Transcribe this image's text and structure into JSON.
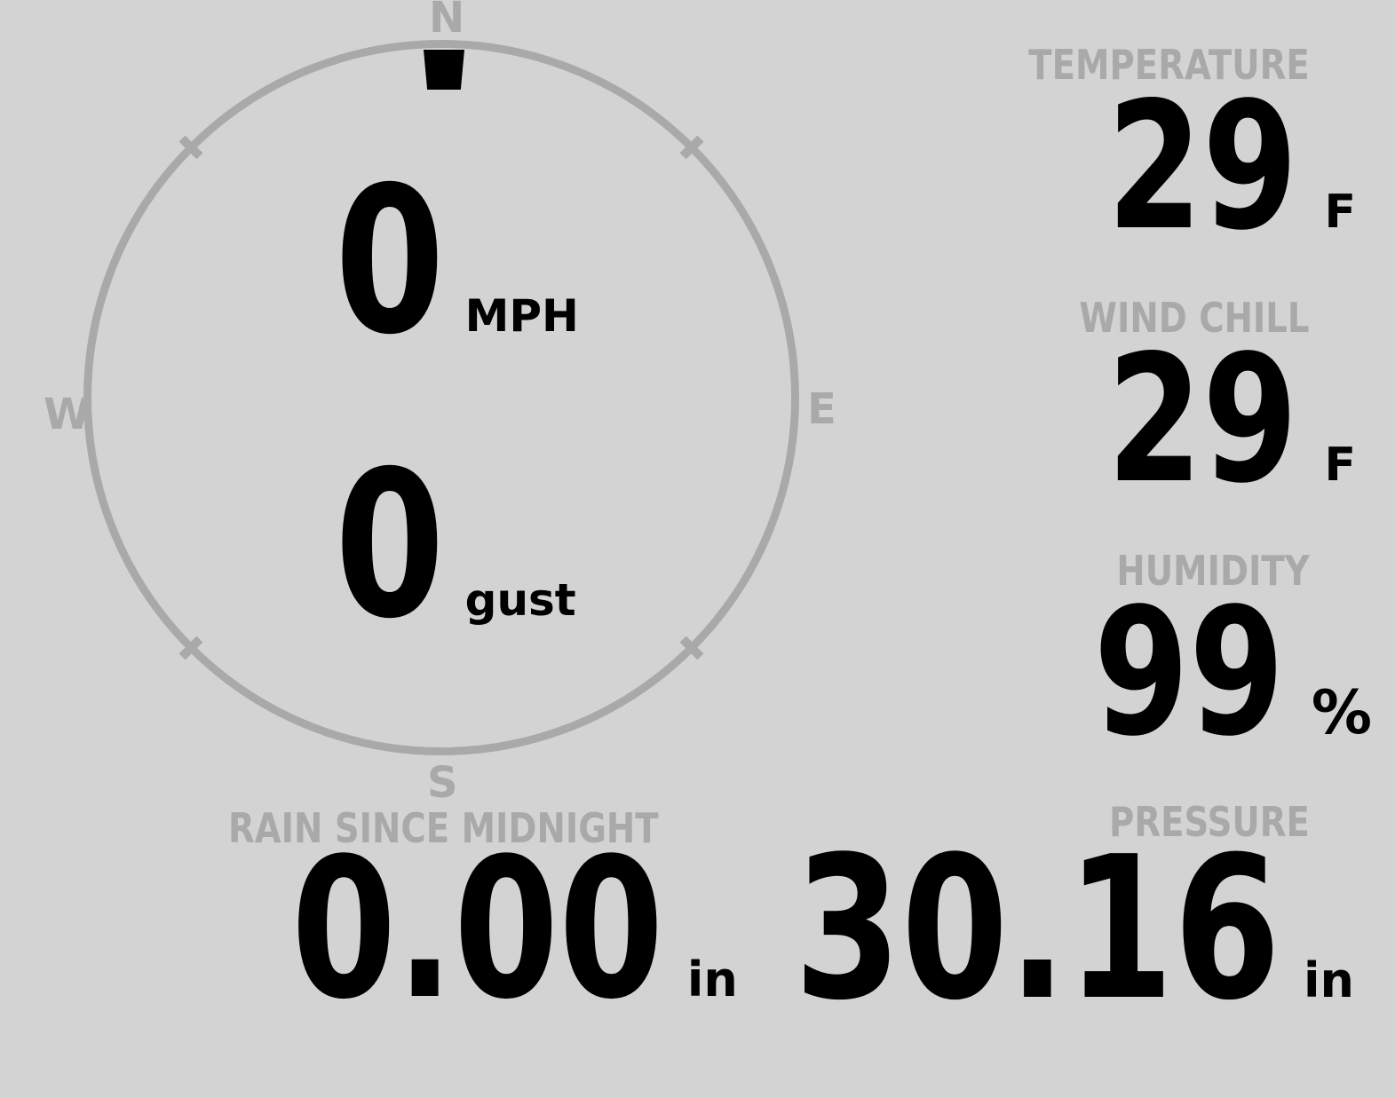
{
  "colors": {
    "background": "#d3d3d3",
    "muted_gray": "#a9a9a9",
    "value_black": "#000000"
  },
  "compass": {
    "north": "N",
    "east": "E",
    "south": "S",
    "west": "W"
  },
  "wind": {
    "direction_marker": "N",
    "speed": "0",
    "speed_unit": "MPH",
    "gust": "0",
    "gust_unit": "gust"
  },
  "metrics": {
    "temperature": {
      "label": "TEMPERATURE",
      "value": "29",
      "unit": "F"
    },
    "wind_chill": {
      "label": "WIND CHILL",
      "value": "29",
      "unit": "F"
    },
    "humidity": {
      "label": "HUMIDITY",
      "value": "99",
      "unit": "%"
    },
    "rain_since_midnight": {
      "label": "RAIN SINCE MIDNIGHT",
      "value": "0.00",
      "unit": "in"
    },
    "pressure": {
      "label": "PRESSURE",
      "value": "30.16",
      "unit": "in"
    }
  }
}
